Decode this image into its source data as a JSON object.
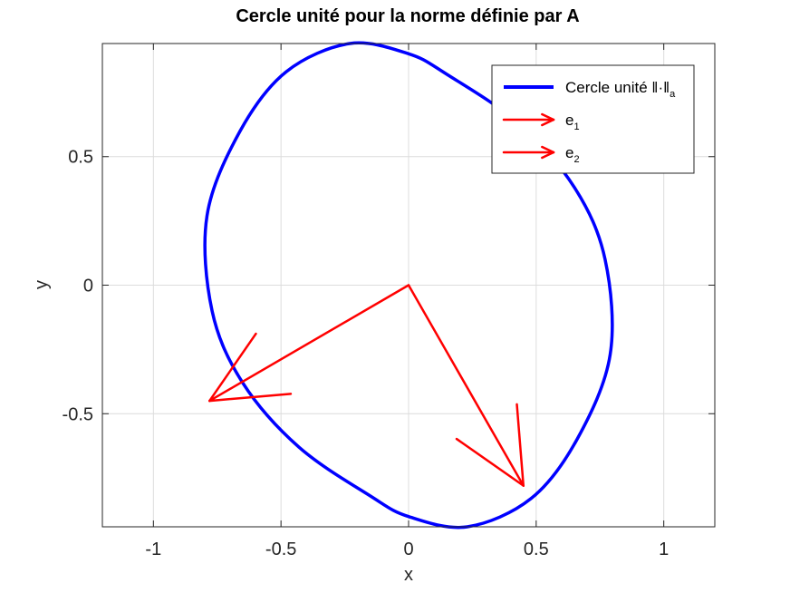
{
  "chart_data": {
    "type": "line",
    "title": "Cercle unité pour la norme définie par A",
    "xlabel": "x",
    "ylabel": "y",
    "xlim": [
      -1.2,
      1.2
    ],
    "ylim": [
      -0.94,
      0.94
    ],
    "xticks": [
      -1,
      -0.5,
      0,
      0.5,
      1
    ],
    "xtick_labels": [
      "-1",
      "-0.5",
      "0",
      "0.5",
      "1"
    ],
    "yticks": [
      -0.5,
      0,
      0.5
    ],
    "ytick_labels": [
      "-0.5",
      "0",
      "0.5"
    ],
    "grid": true,
    "legend_position": "top-right",
    "series": [
      {
        "name": "Cercle unité ‖·‖a",
        "kind": "ellipse",
        "color": "#0000ff",
        "points": [
          [
            0.0,
            0.9
          ],
          [
            -0.23,
            0.94
          ],
          [
            -0.48,
            0.83
          ],
          [
            -0.66,
            0.6
          ],
          [
            -0.79,
            0.27
          ],
          [
            -0.77,
            -0.1
          ],
          [
            -0.65,
            -0.38
          ],
          [
            -0.43,
            -0.63
          ],
          [
            -0.15,
            -0.82
          ],
          [
            0.0,
            -0.9
          ],
          [
            0.23,
            -0.94
          ],
          [
            0.48,
            -0.83
          ],
          [
            0.66,
            -0.6
          ],
          [
            0.79,
            -0.27
          ],
          [
            0.77,
            0.1
          ],
          [
            0.65,
            0.38
          ],
          [
            0.43,
            0.63
          ],
          [
            0.15,
            0.82
          ],
          [
            0.0,
            0.9
          ]
        ]
      },
      {
        "name": "e1",
        "kind": "arrow",
        "color": "#ff0000",
        "from": [
          0,
          0
        ],
        "to": [
          -0.78,
          -0.45
        ]
      },
      {
        "name": "e2",
        "kind": "arrow",
        "color": "#ff0000",
        "from": [
          0,
          0
        ],
        "to": [
          0.45,
          -0.78
        ]
      }
    ],
    "legend": {
      "entries": [
        {
          "text": "Cercle unité ‖·‖",
          "sub": "a",
          "color": "#0000ff",
          "kind": "line"
        },
        {
          "text": "e",
          "sub": "1",
          "color": "#ff0000",
          "kind": "arrow"
        },
        {
          "text": "e",
          "sub": "2",
          "color": "#ff0000",
          "kind": "arrow"
        }
      ]
    }
  }
}
